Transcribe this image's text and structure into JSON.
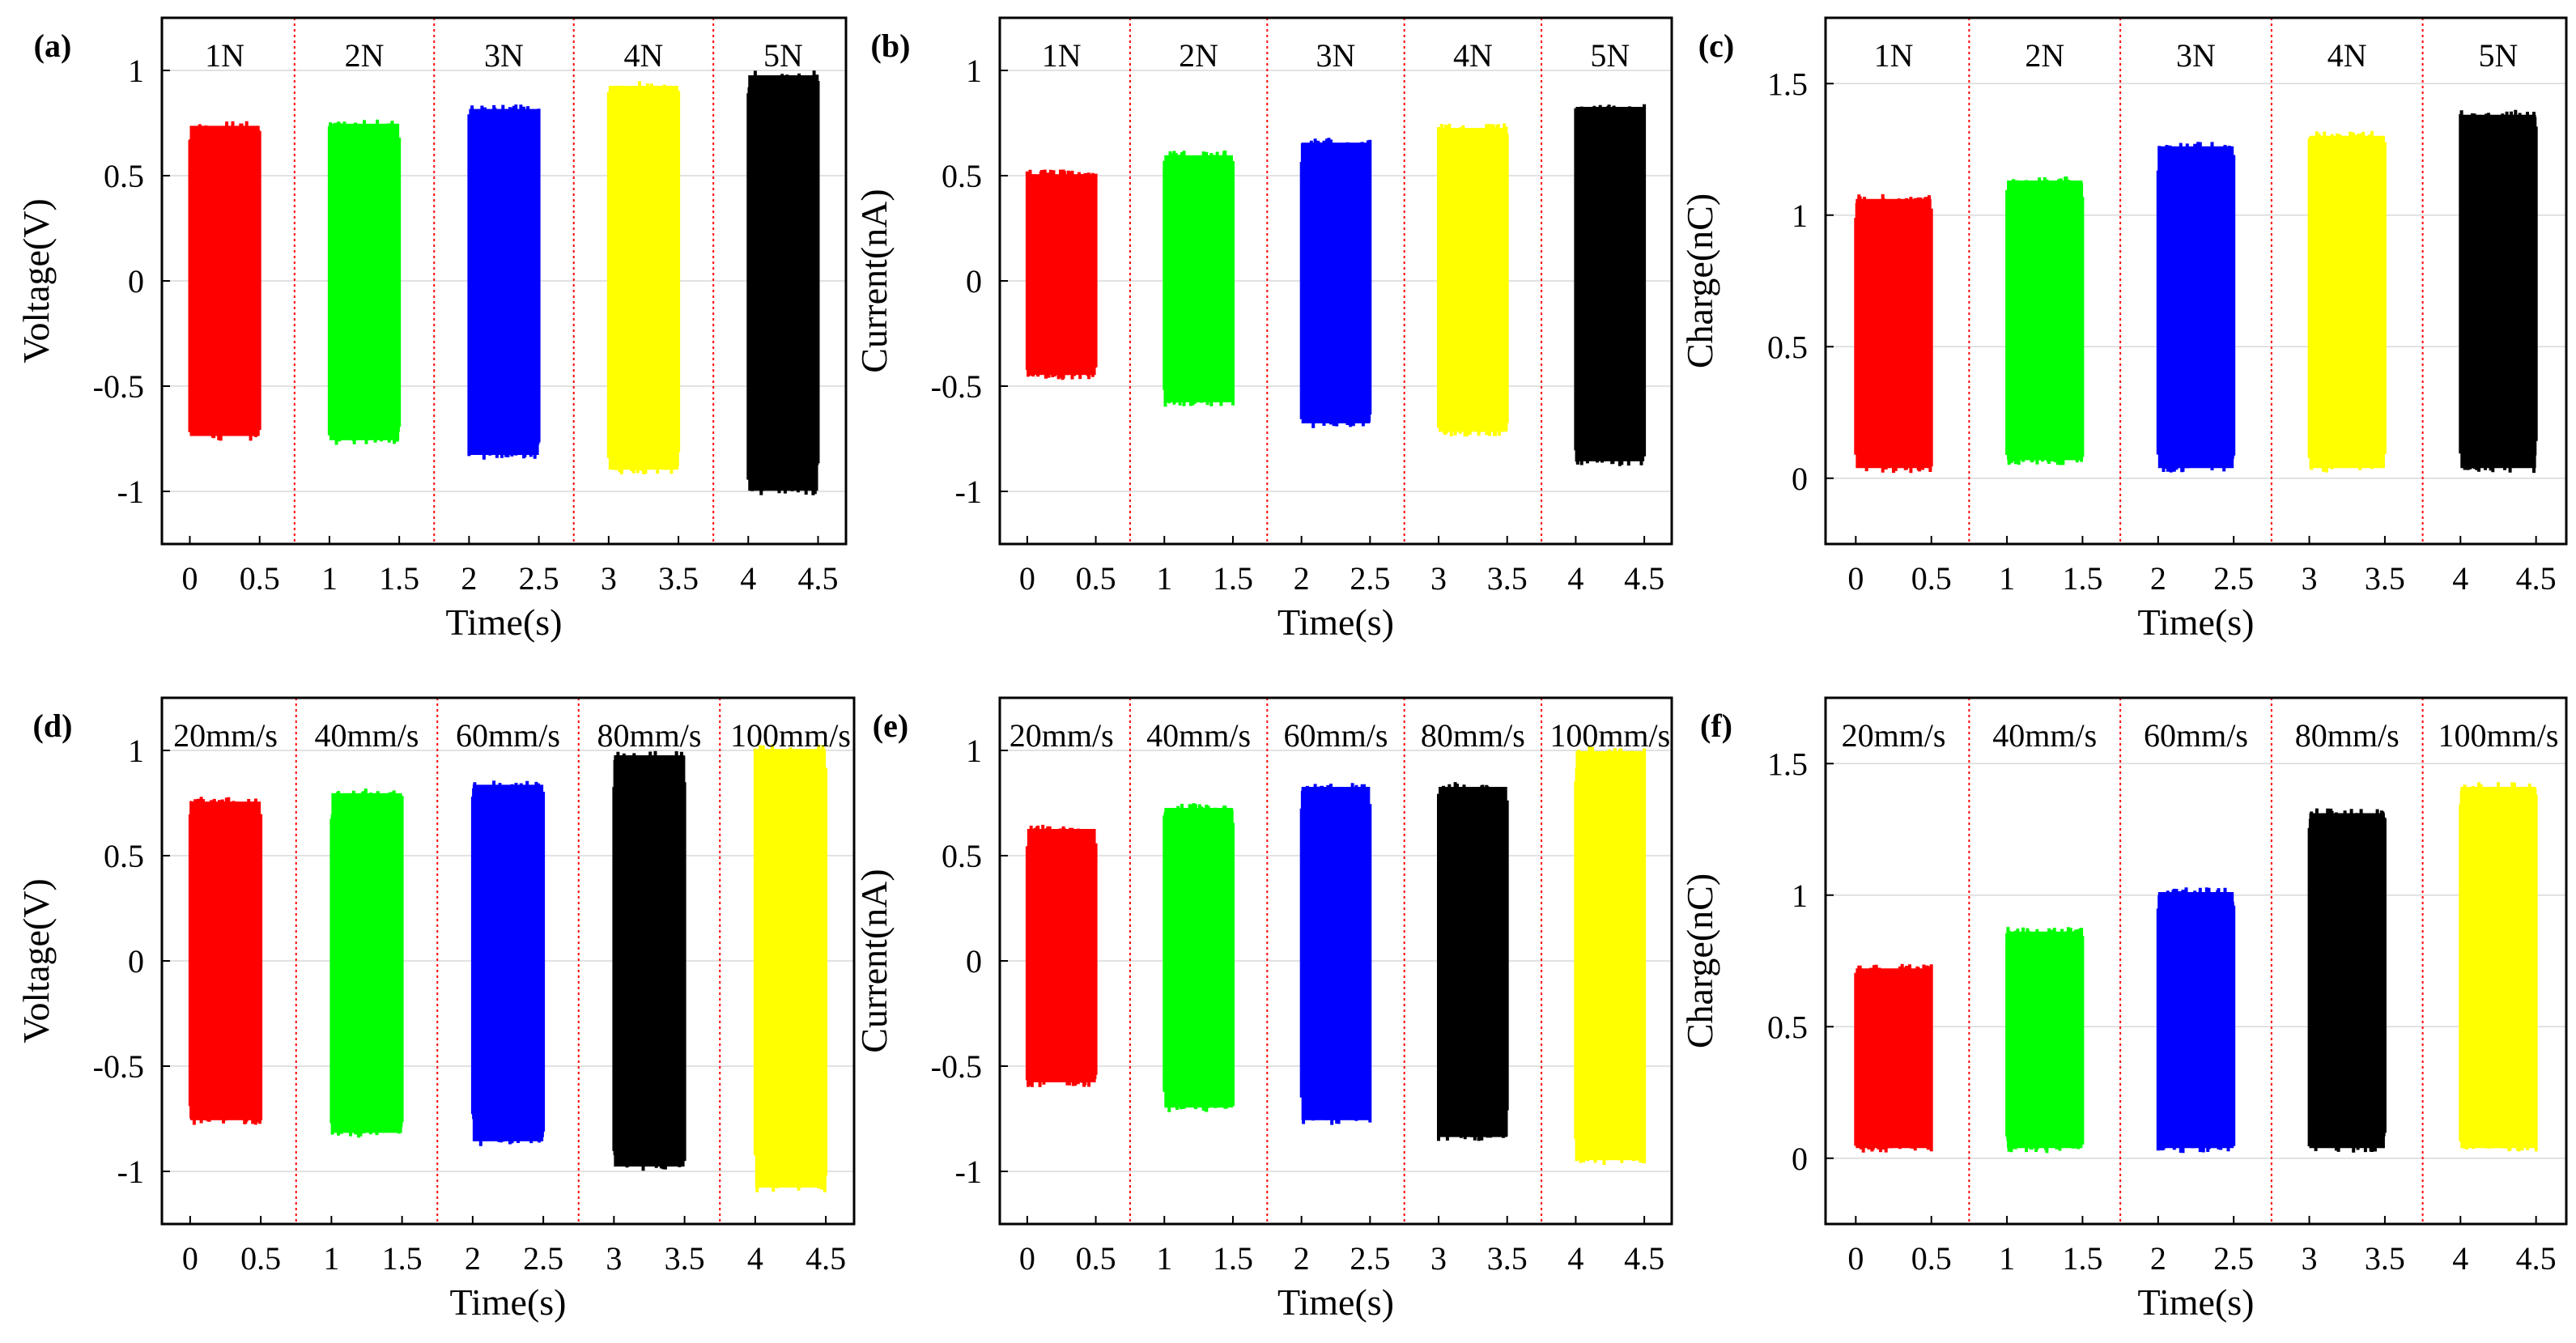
{
  "figure": {
    "panels": [
      {
        "id": "a",
        "panel_label": "(a)",
        "ylabel": "Voltage(V)",
        "xlabel": "Time(s)",
        "ylim": [
          -1.25,
          1.25
        ],
        "yticks": [
          -1,
          -0.5,
          0,
          0.5,
          1
        ],
        "xticks": [
          0,
          0.5,
          1,
          1.5,
          2,
          2.5,
          3,
          3.5,
          4,
          4.5
        ],
        "segments": [
          {
            "label": "1N",
            "color": "#ff0000",
            "ymin": -0.76,
            "ymax": 0.76
          },
          {
            "label": "2N",
            "color": "#00ff00",
            "ymin": -0.78,
            "ymax": 0.77
          },
          {
            "label": "3N",
            "color": "#0000ff",
            "ymin": -0.85,
            "ymax": 0.84
          },
          {
            "label": "4N",
            "color": "#ffff00",
            "ymin": -0.92,
            "ymax": 0.95
          },
          {
            "label": "5N",
            "color": "#000000",
            "ymin": -1.02,
            "ymax": 1.0
          }
        ]
      },
      {
        "id": "b",
        "panel_label": "(b)",
        "ylabel": "Current(nA)",
        "xlabel": "Time(s)",
        "ylim": [
          -1.25,
          1.25
        ],
        "yticks": [
          -1,
          -0.5,
          0,
          0.5,
          1
        ],
        "xticks": [
          0,
          0.5,
          1,
          1.5,
          2,
          2.5,
          3,
          3.5,
          4,
          4.5
        ],
        "segments": [
          {
            "label": "1N",
            "color": "#ff0000",
            "ymin": -0.47,
            "ymax": 0.53
          },
          {
            "label": "2N",
            "color": "#00ff00",
            "ymin": -0.6,
            "ymax": 0.62
          },
          {
            "label": "3N",
            "color": "#0000ff",
            "ymin": -0.7,
            "ymax": 0.68
          },
          {
            "label": "4N",
            "color": "#ffff00",
            "ymin": -0.74,
            "ymax": 0.75
          },
          {
            "label": "5N",
            "color": "#000000",
            "ymin": -0.88,
            "ymax": 0.85
          }
        ]
      },
      {
        "id": "c",
        "panel_label": "(c)",
        "ylabel": "Charge(nC)",
        "xlabel": "Time(s)",
        "ylim": [
          -0.25,
          1.75
        ],
        "yticks": [
          0,
          0.5,
          1,
          1.5
        ],
        "xticks": [
          0,
          0.5,
          1,
          1.5,
          2,
          2.5,
          3,
          3.5,
          4,
          4.5
        ],
        "segments": [
          {
            "label": "1N",
            "color": "#ff0000",
            "ymin": 0.02,
            "ymax": 1.08
          },
          {
            "label": "2N",
            "color": "#00ff00",
            "ymin": 0.05,
            "ymax": 1.15
          },
          {
            "label": "3N",
            "color": "#0000ff",
            "ymin": 0.02,
            "ymax": 1.28
          },
          {
            "label": "4N",
            "color": "#ffff00",
            "ymin": 0.02,
            "ymax": 1.32
          },
          {
            "label": "5N",
            "color": "#000000",
            "ymin": 0.02,
            "ymax": 1.4
          }
        ]
      },
      {
        "id": "d",
        "panel_label": "(d)",
        "ylabel": "Voltage(V)",
        "xlabel": "Time(s)",
        "ylim": [
          -1.25,
          1.25
        ],
        "yticks": [
          -1,
          -0.5,
          0,
          0.5,
          1
        ],
        "xticks": [
          0,
          0.5,
          1,
          1.5,
          2,
          2.5,
          3,
          3.5,
          4,
          4.5
        ],
        "segments": [
          {
            "label": "20mm/s",
            "color": "#ff0000",
            "ymin": -0.78,
            "ymax": 0.78
          },
          {
            "label": "40mm/s",
            "color": "#00ff00",
            "ymin": -0.84,
            "ymax": 0.82
          },
          {
            "label": "60mm/s",
            "color": "#0000ff",
            "ymin": -0.88,
            "ymax": 0.86
          },
          {
            "label": "80mm/s",
            "color": "#000000",
            "ymin": -1.0,
            "ymax": 1.0
          },
          {
            "label": "100mm/s",
            "color": "#ffff00",
            "ymin": -1.1,
            "ymax": 1.03
          }
        ]
      },
      {
        "id": "e",
        "panel_label": "(e)",
        "ylabel": "Current(nA)",
        "xlabel": "Time(s)",
        "ylim": [
          -1.25,
          1.25
        ],
        "yticks": [
          -1,
          -0.5,
          0,
          0.5,
          1
        ],
        "xticks": [
          0,
          0.5,
          1,
          1.5,
          2,
          2.5,
          3,
          3.5,
          4,
          4.5
        ],
        "segments": [
          {
            "label": "20mm/s",
            "color": "#ff0000",
            "ymin": -0.6,
            "ymax": 0.65
          },
          {
            "label": "40mm/s",
            "color": "#00ff00",
            "ymin": -0.72,
            "ymax": 0.75
          },
          {
            "label": "60mm/s",
            "color": "#0000ff",
            "ymin": -0.78,
            "ymax": 0.85
          },
          {
            "label": "80mm/s",
            "color": "#000000",
            "ymin": -0.86,
            "ymax": 0.85
          },
          {
            "label": "100mm/s",
            "color": "#ffff00",
            "ymin": -0.97,
            "ymax": 1.02
          }
        ]
      },
      {
        "id": "f",
        "panel_label": "(f)",
        "ylabel": "Charge(nC)",
        "xlabel": "Time(s)",
        "ylim": [
          -0.25,
          1.75
        ],
        "yticks": [
          0,
          0.5,
          1,
          1.5
        ],
        "xticks": [
          0,
          0.5,
          1,
          1.5,
          2,
          2.5,
          3,
          3.5,
          4,
          4.5
        ],
        "segments": [
          {
            "label": "20mm/s",
            "color": "#ff0000",
            "ymin": 0.02,
            "ymax": 0.74
          },
          {
            "label": "40mm/s",
            "color": "#00ff00",
            "ymin": 0.02,
            "ymax": 0.88
          },
          {
            "label": "60mm/s",
            "color": "#0000ff",
            "ymin": 0.02,
            "ymax": 1.03
          },
          {
            "label": "80mm/s",
            "color": "#000000",
            "ymin": 0.02,
            "ymax": 1.33
          },
          {
            "label": "100mm/s",
            "color": "#ffff00",
            "ymin": 0.02,
            "ymax": 1.43
          }
        ]
      }
    ]
  },
  "chart_data": [
    {
      "type": "line",
      "title": "(a)",
      "xlabel": "Time(s)",
      "ylabel": "Voltage(V)",
      "ylim": [
        -1.25,
        1.25
      ],
      "xlim": [
        -0.2,
        4.7
      ],
      "grid": true,
      "series": [
        {
          "name": "1N",
          "x": [
            0,
            0.5
          ],
          "min": -0.76,
          "max": 0.76
        },
        {
          "name": "2N",
          "x": [
            1,
            1.5
          ],
          "min": -0.78,
          "max": 0.77
        },
        {
          "name": "3N",
          "x": [
            2,
            2.5
          ],
          "min": -0.85,
          "max": 0.84
        },
        {
          "name": "4N",
          "x": [
            3,
            3.5
          ],
          "min": -0.92,
          "max": 0.95
        },
        {
          "name": "5N",
          "x": [
            4,
            4.5
          ],
          "min": -1.02,
          "max": 1.0
        }
      ]
    },
    {
      "type": "line",
      "title": "(b)",
      "xlabel": "Time(s)",
      "ylabel": "Current(nA)",
      "ylim": [
        -1.25,
        1.25
      ],
      "xlim": [
        -0.2,
        4.7
      ],
      "grid": true,
      "series": [
        {
          "name": "1N",
          "x": [
            0,
            0.5
          ],
          "min": -0.47,
          "max": 0.53
        },
        {
          "name": "2N",
          "x": [
            1,
            1.5
          ],
          "min": -0.6,
          "max": 0.62
        },
        {
          "name": "3N",
          "x": [
            2,
            2.5
          ],
          "min": -0.7,
          "max": 0.68
        },
        {
          "name": "4N",
          "x": [
            3,
            3.5
          ],
          "min": -0.74,
          "max": 0.75
        },
        {
          "name": "5N",
          "x": [
            4,
            4.5
          ],
          "min": -0.88,
          "max": 0.85
        }
      ]
    },
    {
      "type": "line",
      "title": "(c)",
      "xlabel": "Time(s)",
      "ylabel": "Charge(nC)",
      "ylim": [
        -0.25,
        1.75
      ],
      "xlim": [
        -0.2,
        4.7
      ],
      "grid": true,
      "series": [
        {
          "name": "1N",
          "x": [
            0,
            0.5
          ],
          "min": 0.02,
          "max": 1.08
        },
        {
          "name": "2N",
          "x": [
            1,
            1.5
          ],
          "min": 0.05,
          "max": 1.15
        },
        {
          "name": "3N",
          "x": [
            2,
            2.5
          ],
          "min": 0.02,
          "max": 1.28
        },
        {
          "name": "4N",
          "x": [
            3,
            3.5
          ],
          "min": 0.02,
          "max": 1.32
        },
        {
          "name": "5N",
          "x": [
            4,
            4.5
          ],
          "min": 0.02,
          "max": 1.4
        }
      ]
    },
    {
      "type": "line",
      "title": "(d)",
      "xlabel": "Time(s)",
      "ylabel": "Voltage(V)",
      "ylim": [
        -1.25,
        1.25
      ],
      "xlim": [
        -0.2,
        4.7
      ],
      "grid": true,
      "series": [
        {
          "name": "20mm/s",
          "x": [
            0,
            0.5
          ],
          "min": -0.78,
          "max": 0.78
        },
        {
          "name": "40mm/s",
          "x": [
            1,
            1.5
          ],
          "min": -0.84,
          "max": 0.82
        },
        {
          "name": "60mm/s",
          "x": [
            2,
            2.5
          ],
          "min": -0.88,
          "max": 0.86
        },
        {
          "name": "80mm/s",
          "x": [
            3,
            3.5
          ],
          "min": -1.0,
          "max": 1.0
        },
        {
          "name": "100mm/s",
          "x": [
            4,
            4.5
          ],
          "min": -1.1,
          "max": 1.03
        }
      ]
    },
    {
      "type": "line",
      "title": "(e)",
      "xlabel": "Time(s)",
      "ylabel": "Current(nA)",
      "ylim": [
        -1.25,
        1.25
      ],
      "xlim": [
        -0.2,
        4.7
      ],
      "grid": true,
      "series": [
        {
          "name": "20mm/s",
          "x": [
            0,
            0.5
          ],
          "min": -0.6,
          "max": 0.65
        },
        {
          "name": "40mm/s",
          "x": [
            1,
            1.5
          ],
          "min": -0.72,
          "max": 0.75
        },
        {
          "name": "60mm/s",
          "x": [
            2,
            2.5
          ],
          "min": -0.78,
          "max": 0.85
        },
        {
          "name": "80mm/s",
          "x": [
            3,
            3.5
          ],
          "min": -0.86,
          "max": 0.85
        },
        {
          "name": "100mm/s",
          "x": [
            4,
            4.5
          ],
          "min": -0.97,
          "max": 1.02
        }
      ]
    },
    {
      "type": "line",
      "title": "(f)",
      "xlabel": "Time(s)",
      "ylabel": "Charge(nC)",
      "ylim": [
        -0.25,
        1.75
      ],
      "xlim": [
        -0.2,
        4.7
      ],
      "grid": true,
      "series": [
        {
          "name": "20mm/s",
          "x": [
            0,
            0.5
          ],
          "min": 0.02,
          "max": 0.74
        },
        {
          "name": "40mm/s",
          "x": [
            1,
            1.5
          ],
          "min": 0.02,
          "max": 0.88
        },
        {
          "name": "60mm/s",
          "x": [
            2,
            2.5
          ],
          "min": 0.02,
          "max": 1.03
        },
        {
          "name": "80mm/s",
          "x": [
            3,
            3.5
          ],
          "min": 0.02,
          "max": 1.33
        },
        {
          "name": "100mm/s",
          "x": [
            4,
            4.5
          ],
          "min": 0.02,
          "max": 1.43
        }
      ]
    }
  ]
}
